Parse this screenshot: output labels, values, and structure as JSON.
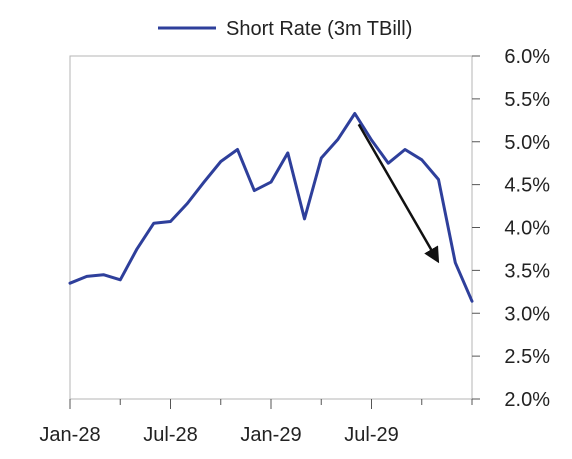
{
  "chart_data": {
    "type": "line",
    "title": "",
    "xlabel": "",
    "ylabel": "",
    "legend": {
      "placement": "top-center"
    },
    "grid": false,
    "ylim": [
      2.0,
      6.0
    ],
    "y_ticks": [
      "2.0%",
      "2.5%",
      "3.0%",
      "3.5%",
      "4.0%",
      "4.5%",
      "5.0%",
      "5.5%",
      "6.0%"
    ],
    "x_ticks": [
      "Jan-28",
      "Jul-28",
      "Jan-29",
      "Jul-29"
    ],
    "series": [
      {
        "name": "Short Rate (3m TBill)",
        "color": "#2e3f9b",
        "x": [
          "1928-01",
          "1928-02",
          "1928-03",
          "1928-04",
          "1928-05",
          "1928-06",
          "1928-07",
          "1928-08",
          "1928-09",
          "1928-10",
          "1928-11",
          "1928-12",
          "1929-01",
          "1929-02",
          "1929-03",
          "1929-04",
          "1929-05",
          "1929-06",
          "1929-07",
          "1929-08",
          "1929-09",
          "1929-10",
          "1929-11",
          "1929-12",
          "1930-01"
        ],
        "values": [
          3.35,
          3.43,
          3.45,
          3.39,
          3.75,
          4.05,
          4.07,
          4.28,
          4.53,
          4.77,
          4.91,
          4.43,
          4.53,
          4.87,
          4.1,
          4.81,
          5.03,
          5.33,
          5.02,
          4.75,
          4.91,
          4.79,
          4.56,
          3.59,
          3.14
        ]
      }
    ],
    "annotations": [
      {
        "type": "arrow",
        "from": {
          "x": "1929-06",
          "y": 5.25
        },
        "to": {
          "x": "1929-11",
          "y": 3.65
        },
        "color": "#111111"
      }
    ]
  }
}
